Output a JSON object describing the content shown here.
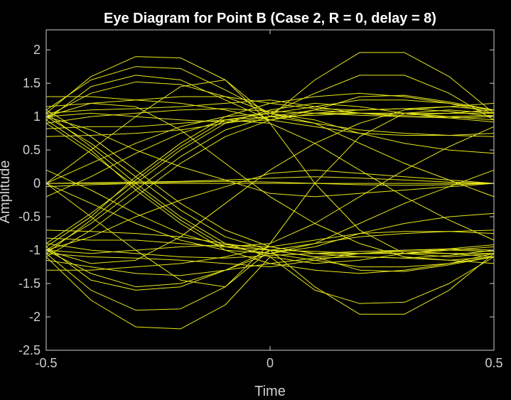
{
  "chart_data": {
    "type": "line",
    "title": "Eye Diagram for Point B (Case 2, R = 0, delay = 8)",
    "xlabel": "Time",
    "ylabel": "Amplitude",
    "xlim": [
      -0.5,
      0.5
    ],
    "ylim": [
      -2.5,
      2.3
    ],
    "xticks": [
      -0.5,
      0,
      0.5
    ],
    "xtick_labels": [
      "-0.5",
      "0",
      "0.5"
    ],
    "yticks": [
      2,
      1.5,
      1,
      0.5,
      0,
      -0.5,
      -1,
      -1.5,
      -2,
      -2.5
    ],
    "ytick_labels": [
      "2",
      "1.5",
      "1",
      "0.5",
      "0",
      "-0.5",
      "-1",
      "-1.5",
      "-2",
      "-2.5"
    ],
    "grid": false,
    "line_color": "#e8e81a",
    "background": "#000000",
    "axis_color": "#cfcfcf",
    "x": [
      -0.5,
      -0.4,
      -0.3,
      -0.2,
      -0.1,
      0.0,
      0.1,
      0.2,
      0.3,
      0.4,
      0.5
    ],
    "series": [
      {
        "values": [
          1.05,
          1.6,
          1.9,
          1.88,
          1.55,
          1.0,
          1.55,
          1.96,
          1.96,
          1.6,
          1.05
        ]
      },
      {
        "values": [
          1.1,
          1.55,
          1.75,
          1.72,
          1.4,
          1.05,
          1.35,
          1.62,
          1.62,
          1.35,
          0.95
        ]
      },
      {
        "values": [
          0.95,
          1.45,
          1.62,
          1.55,
          1.25,
          0.95,
          1.1,
          1.3,
          1.32,
          1.22,
          1.1
        ]
      },
      {
        "values": [
          1.0,
          1.35,
          1.52,
          1.48,
          1.3,
          1.05,
          1.15,
          1.25,
          1.25,
          1.2,
          1.05
        ]
      },
      {
        "values": [
          1.15,
          1.2,
          1.25,
          1.3,
          1.3,
          1.2,
          1.12,
          1.1,
          1.12,
          1.15,
          1.2
        ]
      },
      {
        "values": [
          1.05,
          1.1,
          1.12,
          1.15,
          1.2,
          1.25,
          1.15,
          1.05,
          1.02,
          1.05,
          1.1
        ]
      },
      {
        "values": [
          0.9,
          1.0,
          1.05,
          1.1,
          1.12,
          1.08,
          1.05,
          1.02,
          1.0,
          1.0,
          1.02
        ]
      },
      {
        "values": [
          1.0,
          1.05,
          1.0,
          0.95,
          0.92,
          0.95,
          1.05,
          1.1,
          1.12,
          1.08,
          1.0
        ]
      },
      {
        "values": [
          0.82,
          0.85,
          0.85,
          0.9,
          0.95,
          1.0,
          1.02,
          1.05,
          1.05,
          0.98,
          0.92
        ]
      },
      {
        "values": [
          1.0,
          0.6,
          0.1,
          -0.4,
          -0.8,
          -1.0,
          -1.1,
          -1.05,
          -1.0,
          -0.98,
          -1.0
        ]
      },
      {
        "values": [
          1.05,
          0.55,
          0.0,
          -0.5,
          -0.9,
          -1.1,
          -1.2,
          -1.15,
          -1.05,
          -1.0,
          -0.95
        ]
      },
      {
        "values": [
          0.95,
          0.5,
          -0.1,
          -0.6,
          -1.0,
          -1.2,
          -1.3,
          -1.35,
          -1.3,
          -1.2,
          -1.1
        ]
      },
      {
        "values": [
          1.1,
          0.7,
          0.2,
          -0.3,
          -0.7,
          -0.95,
          -1.05,
          -1.05,
          -1.05,
          -1.05,
          -1.05
        ]
      },
      {
        "values": [
          0.9,
          0.45,
          -0.05,
          -0.55,
          -0.95,
          -1.05,
          -0.95,
          -0.75,
          -0.6,
          -0.5,
          -0.45
        ]
      },
      {
        "values": [
          1.0,
          0.8,
          0.5,
          0.25,
          0.05,
          -0.15,
          -0.2,
          -0.15,
          -0.1,
          -0.05,
          0.0
        ]
      },
      {
        "values": [
          -1.0,
          -0.6,
          -0.1,
          0.4,
          0.8,
          1.0,
          1.1,
          1.05,
          1.0,
          0.98,
          1.0
        ]
      },
      {
        "values": [
          -1.05,
          -0.55,
          0.0,
          0.5,
          0.9,
          1.1,
          1.2,
          1.15,
          1.05,
          1.0,
          0.95
        ]
      },
      {
        "values": [
          -0.95,
          -0.5,
          0.1,
          0.6,
          1.0,
          1.2,
          1.3,
          1.35,
          1.3,
          1.2,
          1.1
        ]
      },
      {
        "values": [
          -1.1,
          -0.7,
          -0.2,
          0.3,
          0.7,
          0.95,
          1.05,
          1.05,
          1.05,
          1.05,
          1.05
        ]
      },
      {
        "values": [
          -0.9,
          -0.45,
          0.05,
          0.55,
          0.95,
          1.05,
          0.95,
          0.75,
          0.6,
          0.5,
          0.45
        ]
      },
      {
        "values": [
          -1.0,
          -0.8,
          -0.5,
          -0.25,
          -0.05,
          0.15,
          0.2,
          0.15,
          0.1,
          0.05,
          0.0
        ]
      },
      {
        "values": [
          -1.05,
          -1.6,
          -1.9,
          -1.88,
          -1.55,
          -1.0,
          -1.55,
          -1.96,
          -1.96,
          -1.6,
          -1.05
        ]
      },
      {
        "values": [
          -1.1,
          -1.75,
          -2.15,
          -2.18,
          -1.82,
          -1.1,
          -1.6,
          -1.8,
          -1.78,
          -1.5,
          -1.1
        ]
      },
      {
        "values": [
          -0.95,
          -1.45,
          -1.6,
          -1.55,
          -1.3,
          -1.0,
          -1.1,
          -1.3,
          -1.32,
          -1.22,
          -1.1
        ]
      },
      {
        "values": [
          -1.0,
          -1.35,
          -1.55,
          -1.5,
          -1.3,
          -1.05,
          -1.15,
          -1.25,
          -1.25,
          -1.2,
          -1.05
        ]
      },
      {
        "values": [
          -1.15,
          -1.25,
          -1.35,
          -1.38,
          -1.3,
          -1.2,
          -1.12,
          -1.1,
          -1.12,
          -1.15,
          -1.2
        ]
      },
      {
        "values": [
          -1.05,
          -1.1,
          -1.12,
          -1.15,
          -1.2,
          -1.25,
          -1.15,
          -1.05,
          -1.02,
          -1.05,
          -1.1
        ]
      },
      {
        "values": [
          -0.9,
          -1.0,
          -1.05,
          -1.1,
          -1.12,
          -1.08,
          -1.05,
          -1.02,
          -1.0,
          -1.0,
          -1.02
        ]
      },
      {
        "values": [
          -1.0,
          -1.05,
          -1.0,
          -0.95,
          -0.92,
          -0.95,
          -1.05,
          -1.1,
          -1.12,
          -1.08,
          -1.0
        ]
      },
      {
        "values": [
          -0.82,
          -0.85,
          -0.85,
          -0.9,
          -0.95,
          -1.0,
          -1.02,
          -1.05,
          -1.05,
          -0.98,
          -0.92
        ]
      },
      {
        "values": [
          -0.7,
          -0.72,
          -0.75,
          -0.8,
          -0.9,
          -1.0,
          -0.9,
          -0.8,
          -0.75,
          -0.72,
          -0.7
        ]
      },
      {
        "values": [
          -1.3,
          -1.3,
          -1.25,
          -1.2,
          -1.1,
          -0.95,
          -0.85,
          -0.75,
          -0.72,
          -0.72,
          -0.75
        ]
      },
      {
        "values": [
          0.0,
          0.0,
          0.0,
          0.0,
          0.0,
          0.0,
          0.0,
          0.0,
          0.0,
          0.0,
          0.0
        ]
      },
      {
        "values": [
          0.0,
          0.01,
          0.02,
          0.03,
          0.05,
          0.08,
          0.1,
          0.08,
          0.05,
          0.02,
          0.0
        ]
      },
      {
        "values": [
          -0.05,
          -0.02,
          0.0,
          0.02,
          0.03,
          0.02,
          0.0,
          -0.02,
          -0.03,
          -0.02,
          0.0
        ]
      },
      {
        "values": [
          0.0,
          0.3,
          0.6,
          0.85,
          1.0,
          1.05,
          0.9,
          0.6,
          0.3,
          0.05,
          -0.2
        ]
      },
      {
        "values": [
          0.0,
          -0.3,
          -0.6,
          -0.85,
          -1.0,
          -1.05,
          -0.9,
          -0.6,
          -0.3,
          -0.05,
          0.2
        ]
      },
      {
        "values": [
          -0.2,
          0.1,
          0.45,
          0.75,
          0.95,
          0.9,
          0.6,
          0.2,
          -0.2,
          -0.55,
          -0.85
        ]
      },
      {
        "values": [
          0.2,
          -0.1,
          -0.45,
          -0.75,
          -0.95,
          -0.9,
          -0.6,
          -0.2,
          0.2,
          0.55,
          0.85
        ]
      },
      {
        "values": [
          0.0,
          -0.5,
          -1.0,
          -1.45,
          -1.55,
          -0.9,
          0.0,
          0.7,
          1.05,
          1.1,
          1.05
        ]
      },
      {
        "values": [
          0.0,
          0.5,
          1.0,
          1.45,
          1.55,
          0.9,
          0.0,
          -0.7,
          -1.05,
          -1.1,
          -1.05
        ]
      },
      {
        "values": [
          -1.0,
          -1.2,
          -1.15,
          -0.8,
          -0.3,
          0.2,
          0.6,
          0.9,
          1.1,
          1.15,
          1.1
        ]
      },
      {
        "values": [
          1.0,
          1.2,
          1.15,
          0.8,
          0.3,
          -0.2,
          -0.6,
          -0.9,
          -1.1,
          -1.15,
          -1.1
        ]
      },
      {
        "values": [
          0.7,
          0.72,
          0.75,
          0.8,
          0.9,
          1.0,
          0.9,
          0.8,
          0.75,
          0.72,
          0.7
        ]
      },
      {
        "values": [
          1.3,
          1.3,
          1.25,
          1.2,
          1.1,
          0.95,
          0.85,
          0.75,
          0.72,
          0.72,
          0.75
        ]
      }
    ]
  }
}
